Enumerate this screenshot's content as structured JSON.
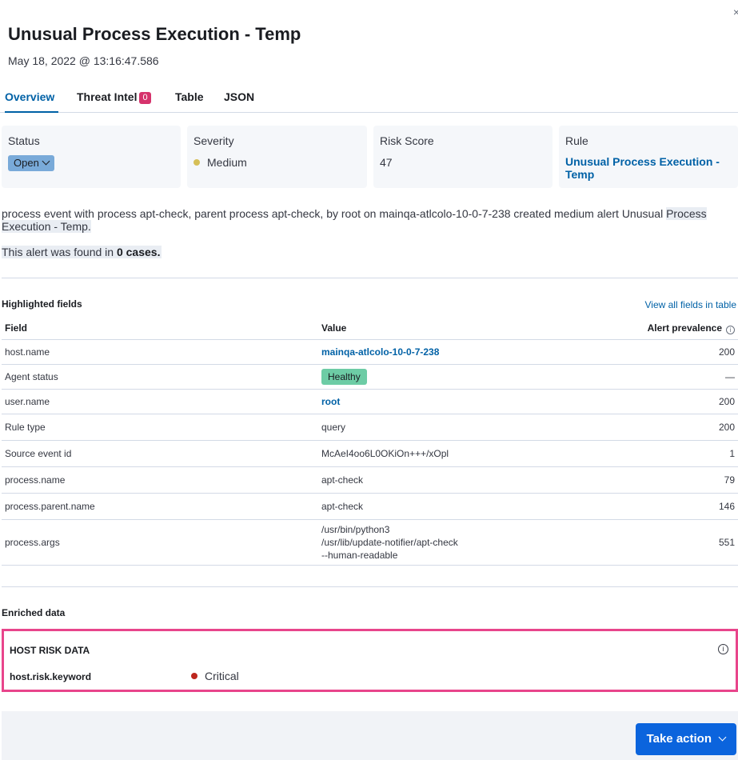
{
  "header": {
    "title": "Unusual Process Execution - Temp",
    "timestamp": "May 18, 2022 @ 13:16:47.586",
    "close_glyph": "×"
  },
  "tabs": [
    {
      "label": "Overview",
      "active": true
    },
    {
      "label": "Threat Intel",
      "badge": "0"
    },
    {
      "label": "Table"
    },
    {
      "label": "JSON"
    }
  ],
  "summary_cards": {
    "status": {
      "title": "Status",
      "value": "Open"
    },
    "severity": {
      "title": "Severity",
      "value": "Medium",
      "dot_color": "#d6bf57"
    },
    "risk_score": {
      "title": "Risk Score",
      "value": "47"
    },
    "rule": {
      "title": "Rule",
      "value": "Unusual Process Execution - Temp"
    }
  },
  "summary_text": {
    "part1": "process event with process apt-check, parent process apt-check, by root on mainqa-atlcolo-10-0-7-238 created medium alert Unusual ",
    "part2": "Process Execution - Temp.",
    "cases_prefix": "This alert was found in ",
    "cases_count": "0 cases."
  },
  "highlighted_fields": {
    "title": "Highlighted fields",
    "view_all_link": "View all fields in table",
    "columns": [
      "Field",
      "Value",
      "Alert prevalence"
    ],
    "rows": [
      {
        "field": "host.name",
        "value": "mainqa-atlcolo-10-0-7-238",
        "prevalence": "200"
      },
      {
        "field": "Agent status",
        "value": "Healthy",
        "prevalence": "—"
      },
      {
        "field": "user.name",
        "value": "root",
        "prevalence": "200"
      },
      {
        "field": "Rule type",
        "value": "query",
        "prevalence": "200"
      },
      {
        "field": "Source event id",
        "value": "McAeI4oo6L0OKiOn+++/xOpl",
        "prevalence": "1"
      },
      {
        "field": "process.name",
        "value": "apt-check",
        "prevalence": "79"
      },
      {
        "field": "process.parent.name",
        "value": "apt-check",
        "prevalence": "146"
      },
      {
        "field": "process.args",
        "value_lines": [
          "/usr/bin/python3",
          "/usr/lib/update-notifier/apt-check",
          "--human-readable"
        ],
        "prevalence": "551"
      }
    ]
  },
  "enriched": {
    "title": "Enriched data",
    "host_risk_title": "HOST RISK DATA",
    "key": "host.risk.keyword",
    "value": "Critical",
    "dot_color": "#bd271e"
  },
  "footer": {
    "take_action": "Take action"
  },
  "colors": {
    "accent": "#0061a6",
    "primary_button": "#0b64dd",
    "highlight_border": "#e8458b",
    "healthy_badge": "#6dcca5",
    "status_pill": "#79aad9",
    "tab_badge": "#d6336c"
  }
}
